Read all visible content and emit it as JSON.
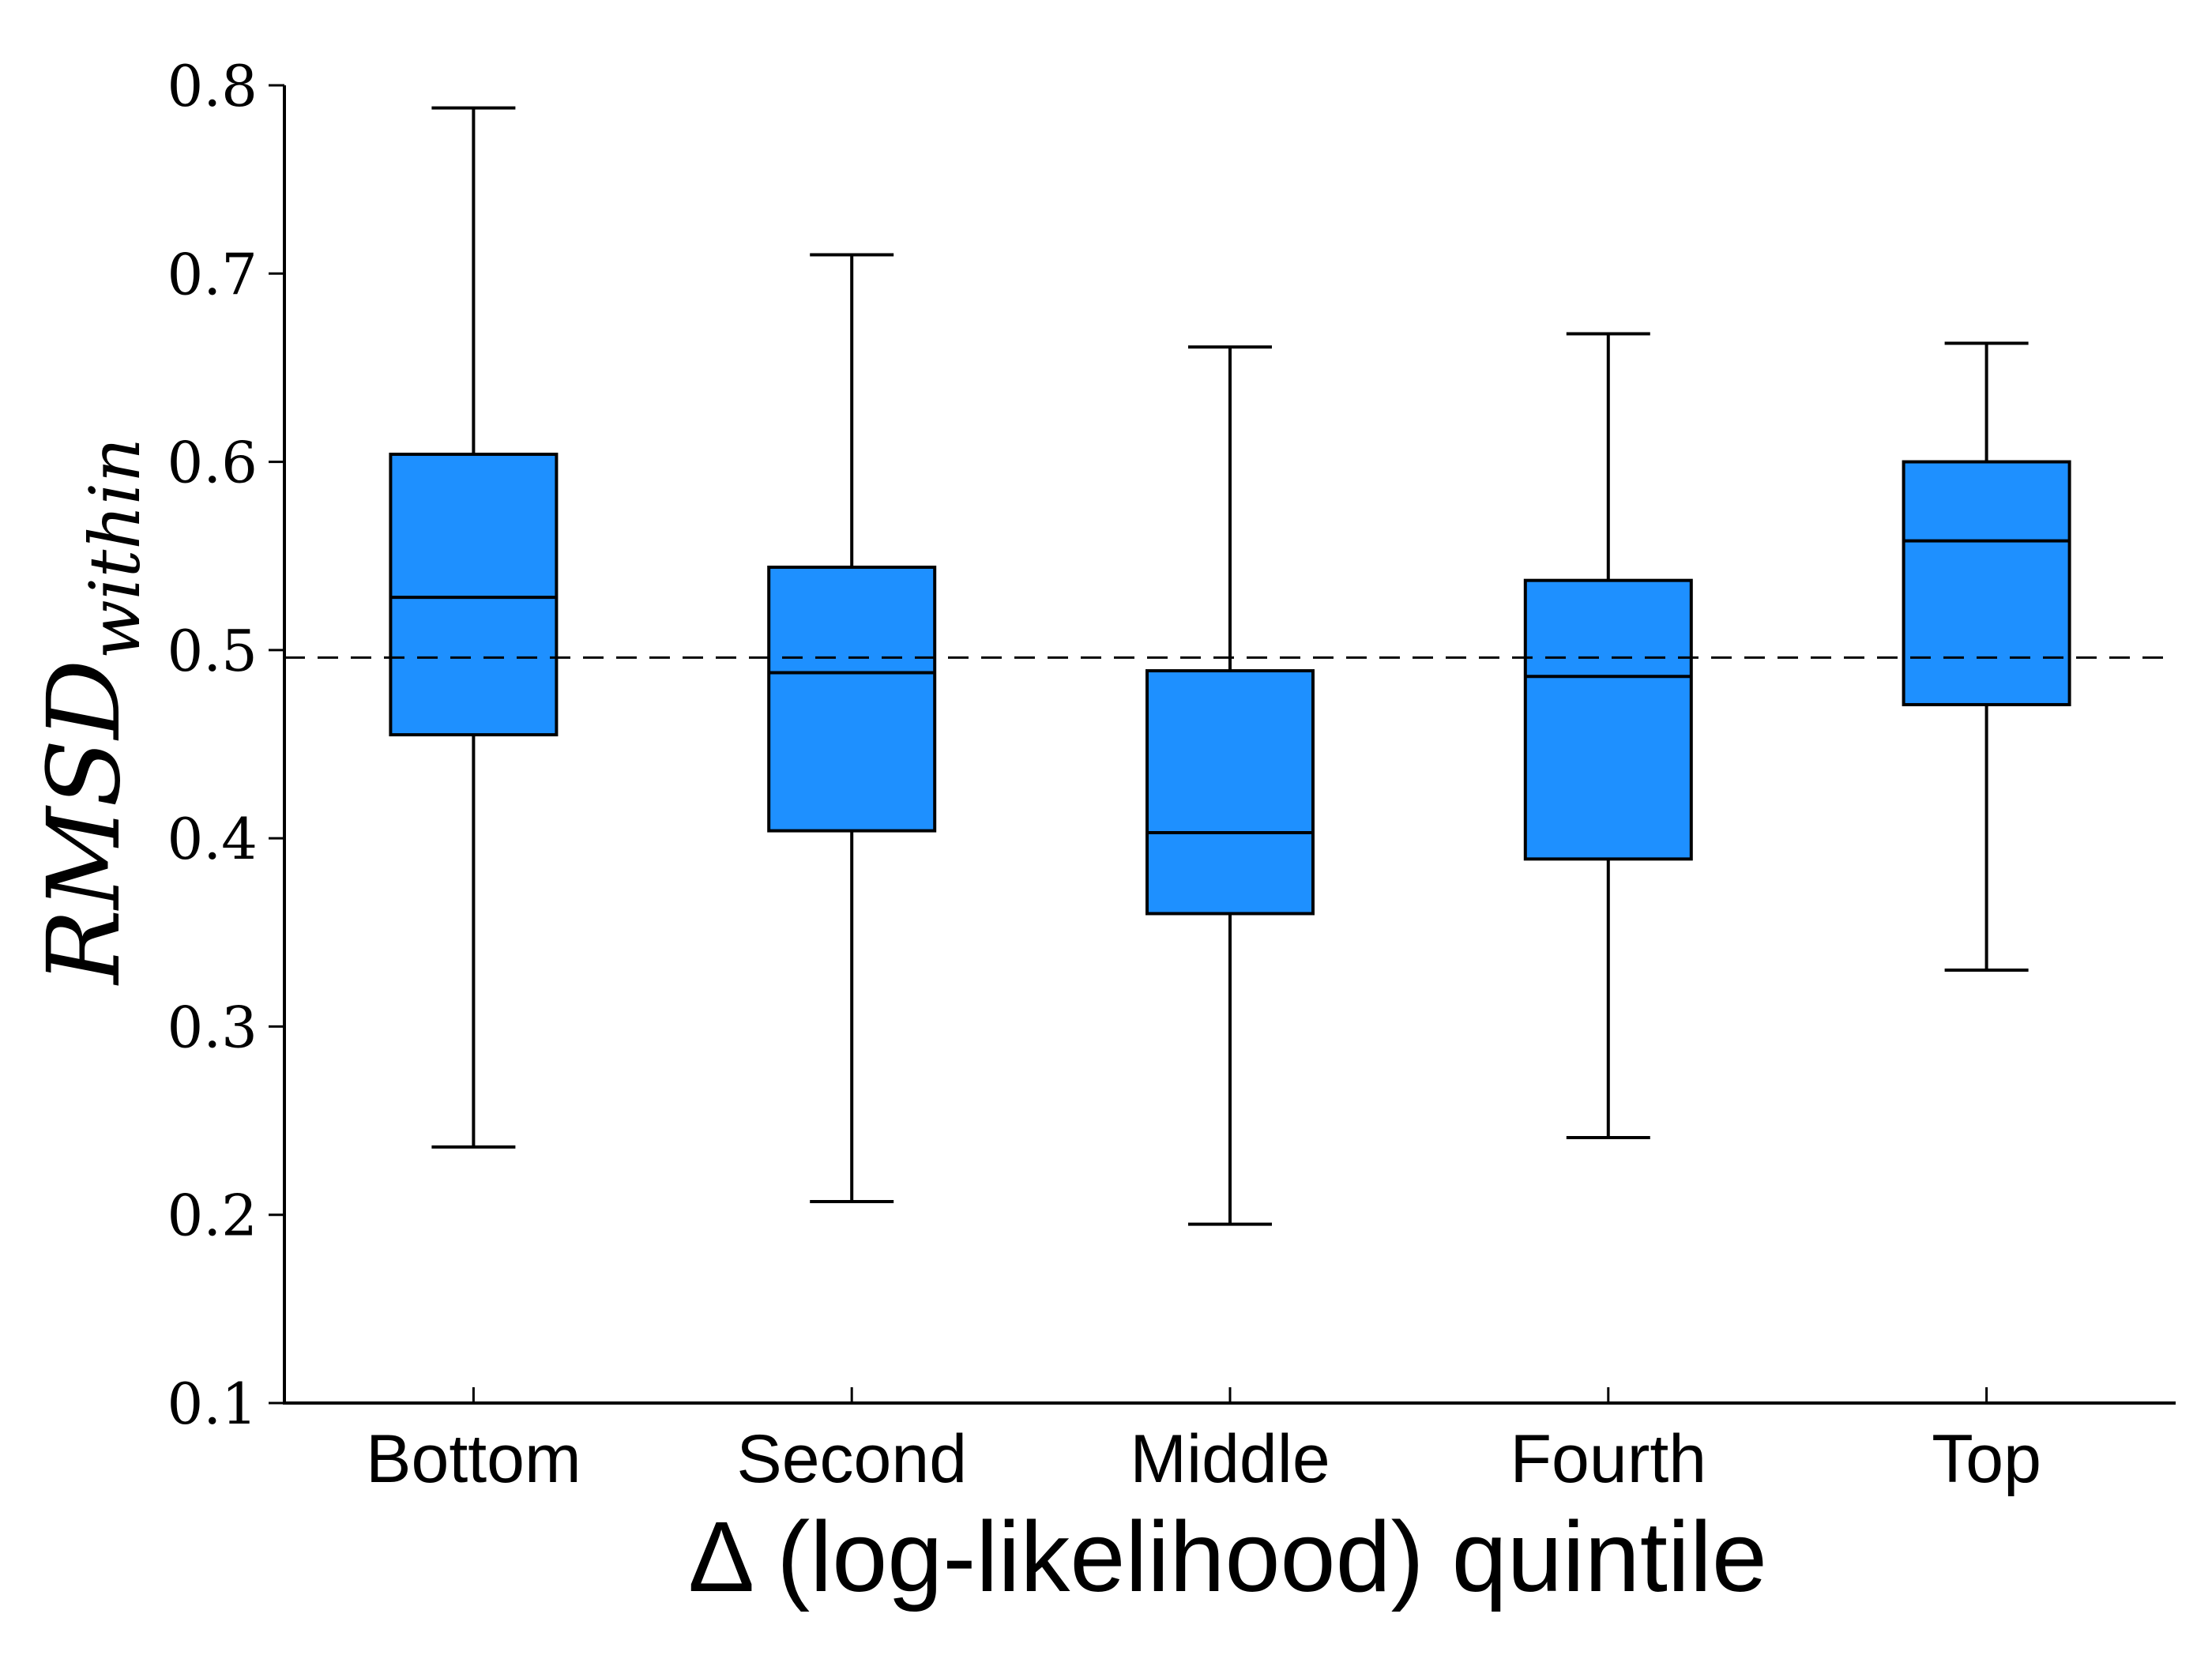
{
  "chart_data": {
    "type": "box",
    "categories": [
      "Bottom",
      "Second",
      "Middle",
      "Fourth",
      "Top"
    ],
    "boxes": [
      {
        "category": "Bottom",
        "whisker_low": 0.236,
        "q1": 0.455,
        "median": 0.528,
        "q3": 0.604,
        "whisker_high": 0.788
      },
      {
        "category": "Second",
        "whisker_low": 0.207,
        "q1": 0.404,
        "median": 0.488,
        "q3": 0.544,
        "whisker_high": 0.71
      },
      {
        "category": "Middle",
        "whisker_low": 0.195,
        "q1": 0.36,
        "median": 0.403,
        "q3": 0.489,
        "whisker_high": 0.661
      },
      {
        "category": "Fourth",
        "whisker_low": 0.241,
        "q1": 0.389,
        "median": 0.486,
        "q3": 0.537,
        "whisker_high": 0.668
      },
      {
        "category": "Top",
        "whisker_low": 0.33,
        "q1": 0.471,
        "median": 0.558,
        "q3": 0.6,
        "whisker_high": 0.663
      }
    ],
    "reference_line": 0.496,
    "ylim": [
      0.1,
      0.8
    ],
    "yticks": [
      0.1,
      0.2,
      0.3,
      0.4,
      0.5,
      0.6,
      0.7,
      0.8
    ],
    "ytick_labels": [
      "0.1",
      "0.2",
      "0.3",
      "0.4",
      "0.5",
      "0.6",
      "0.7",
      "0.8"
    ],
    "xlabel": "Δ (log-likelihood) quintile",
    "ylabel_main": "RMSD",
    "ylabel_sub": "within",
    "grid": false,
    "colors": {
      "box_fill": "#1e90ff",
      "stroke": "#000000",
      "reference_line": "#000000"
    }
  }
}
